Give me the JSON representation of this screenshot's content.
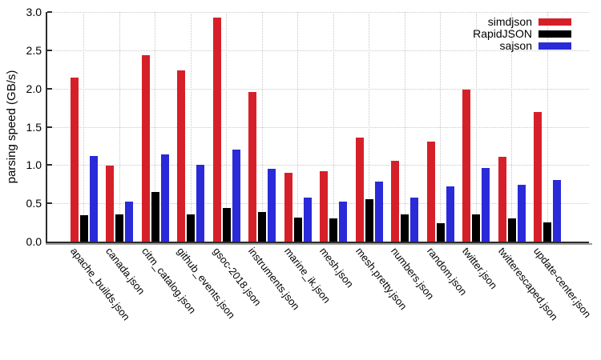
{
  "chart_data": {
    "type": "bar",
    "title": "",
    "xlabel": "",
    "ylabel": "parsing speed (GB/s)",
    "ylim": [
      0.0,
      3.0
    ],
    "ytick_step": 0.5,
    "yticks": [
      "0.0",
      "0.5",
      "1.0",
      "1.5",
      "2.0",
      "2.5",
      "3.0"
    ],
    "grid": "dotted, horizontal at each 0.5 and vertical at each category center",
    "legend_position": "top-right",
    "categories": [
      "apache_builds.json",
      "canada.json",
      "citm_catalog.json",
      "github_events.json",
      "gsoc-2018.json",
      "instruments.json",
      "marine_ik.json",
      "mesh.json",
      "mesh.pretty.json",
      "numbers.json",
      "random.json",
      "twitter.json",
      "twitterescaped.json",
      "update-center.json"
    ],
    "series": [
      {
        "name": "simdjson",
        "color": "#d62029",
        "values": [
          2.14,
          0.99,
          2.44,
          2.24,
          2.93,
          1.95,
          0.9,
          0.92,
          1.36,
          1.06,
          1.31,
          1.99,
          1.11,
          1.69
        ]
      },
      {
        "name": "RapidJSON",
        "color": "#000000",
        "values": [
          0.34,
          0.36,
          0.65,
          0.36,
          0.44,
          0.39,
          0.31,
          0.3,
          0.55,
          0.36,
          0.24,
          0.36,
          0.3,
          0.25
        ]
      },
      {
        "name": "sajson",
        "color": "#2a2ad8",
        "values": [
          1.12,
          0.52,
          1.14,
          1.0,
          1.2,
          0.95,
          0.58,
          0.52,
          0.78,
          0.57,
          0.72,
          0.96,
          0.74,
          0.8
        ]
      }
    ],
    "axis_color": "#2b2b2b",
    "grid_color": "#c7c7cc"
  }
}
